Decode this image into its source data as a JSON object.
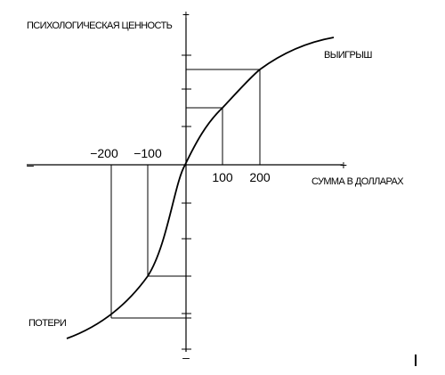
{
  "y_axis_label": "ПСИХОЛОГИЧЕСКАЯ ЦЕННОСТЬ",
  "x_axis_label": "СУММА В ДОЛЛАРАХ",
  "gains_label": "ВЫИГРЫШ",
  "losses_label": "ПОТЕРИ",
  "y_plus": "+",
  "y_minus": "–",
  "x_plus": "+",
  "x_minus": "–",
  "x_tick_labels": [
    "−200",
    "−100",
    "100",
    "200"
  ]
}
